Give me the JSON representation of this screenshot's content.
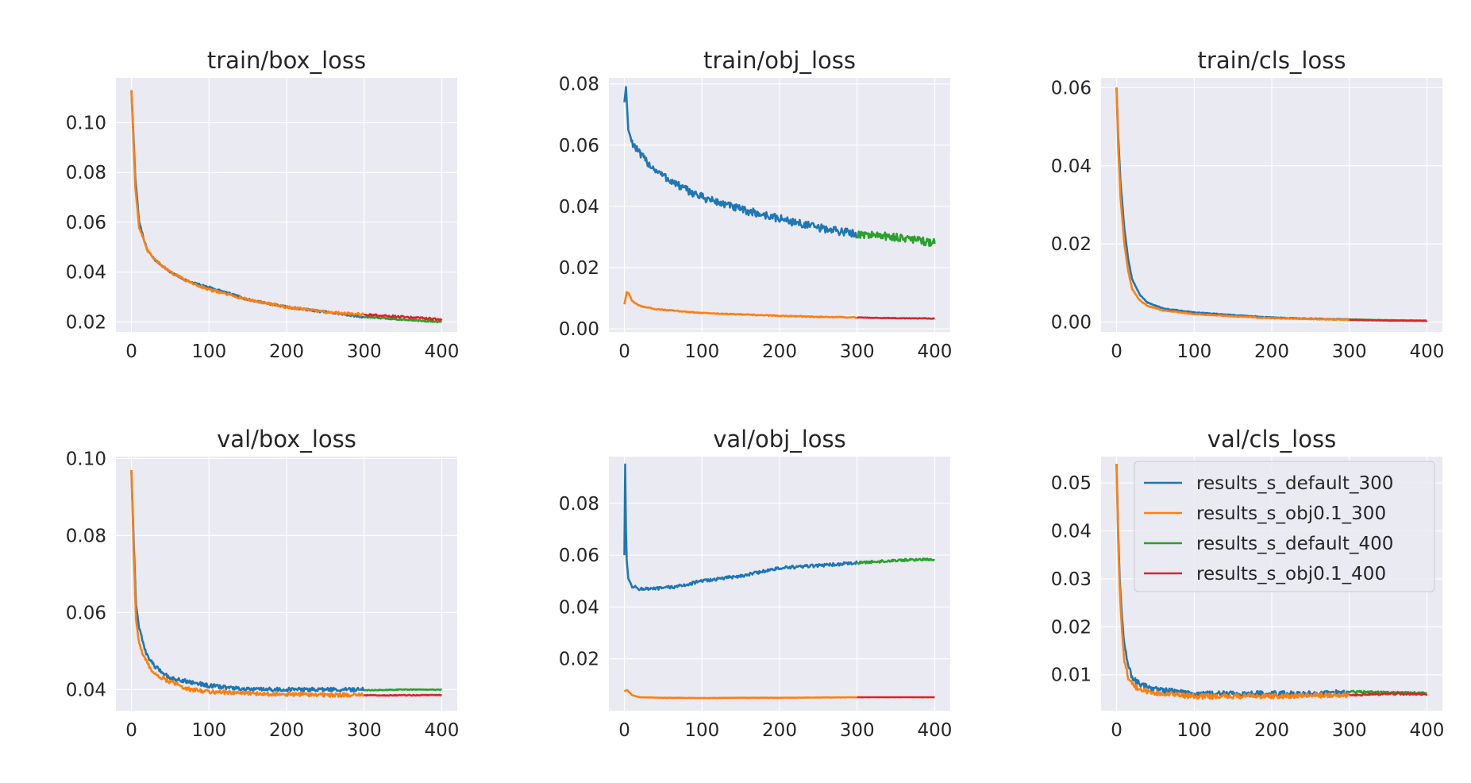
{
  "figure_title": "",
  "colors": {
    "results_s_default_300": "#1f77b4",
    "results_s_obj0.1_300": "#ff7f0e",
    "results_s_default_400": "#2ca02c",
    "results_s_obj0.1_400": "#d62728",
    "panel_bg": "#eaeaf2",
    "grid": "#ffffff"
  },
  "legend": {
    "placement": "upper right of val/cls_loss",
    "entries": [
      {
        "key": "results_s_default_300",
        "label": "results_s_default_300"
      },
      {
        "key": "results_s_obj0.1_300",
        "label": "results_s_obj0.1_300"
      },
      {
        "key": "results_s_default_400",
        "label": "results_s_default_400"
      },
      {
        "key": "results_s_obj0.1_400",
        "label": "results_s_obj0.1_400"
      }
    ]
  },
  "chart_data": [
    {
      "type": "line",
      "title": "train/box_loss",
      "xlim": [
        -20,
        420
      ],
      "ylim": [
        0.016,
        0.118
      ],
      "xticks": [
        0,
        100,
        200,
        300,
        400
      ],
      "xtick_labels": [
        "0",
        "100",
        "200",
        "300",
        "400"
      ],
      "yticks": [
        0.02,
        0.04,
        0.06,
        0.08,
        0.1
      ],
      "ytick_labels": [
        "0.02",
        "0.04",
        "0.06",
        "0.08",
        "0.10"
      ],
      "grid": true,
      "series": [
        {
          "name": "results_s_default_300",
          "x": [
            0,
            5,
            10,
            20,
            30,
            50,
            75,
            100,
            150,
            200,
            250,
            300
          ],
          "y": [
            0.113,
            0.078,
            0.06,
            0.049,
            0.045,
            0.04,
            0.036,
            0.034,
            0.029,
            0.026,
            0.024,
            0.022
          ],
          "noise": 0.0004
        },
        {
          "name": "results_s_obj0.1_300",
          "x": [
            0,
            5,
            10,
            20,
            30,
            50,
            75,
            100,
            150,
            200,
            250,
            300
          ],
          "y": [
            0.113,
            0.074,
            0.058,
            0.049,
            0.045,
            0.04,
            0.036,
            0.033,
            0.029,
            0.026,
            0.024,
            0.023
          ],
          "noise": 0.0005
        },
        {
          "name": "results_s_default_400",
          "x": [
            300,
            350,
            400
          ],
          "y": [
            0.022,
            0.021,
            0.02
          ],
          "noise": 0.0003
        },
        {
          "name": "results_s_obj0.1_400",
          "x": [
            300,
            350,
            400
          ],
          "y": [
            0.023,
            0.022,
            0.021
          ],
          "noise": 0.0004
        }
      ]
    },
    {
      "type": "line",
      "title": "train/obj_loss",
      "xlim": [
        -20,
        420
      ],
      "ylim": [
        -0.001,
        0.082
      ],
      "xticks": [
        0,
        100,
        200,
        300,
        400
      ],
      "xtick_labels": [
        "0",
        "100",
        "200",
        "300",
        "400"
      ],
      "yticks": [
        0.0,
        0.02,
        0.04,
        0.06,
        0.08
      ],
      "ytick_labels": [
        "0.00",
        "0.02",
        "0.04",
        "0.06",
        "0.08"
      ],
      "grid": true,
      "series": [
        {
          "name": "results_s_default_300",
          "x": [
            0,
            2,
            5,
            10,
            20,
            35,
            50,
            75,
            100,
            150,
            200,
            250,
            300
          ],
          "y": [
            0.074,
            0.079,
            0.065,
            0.061,
            0.057,
            0.053,
            0.05,
            0.046,
            0.043,
            0.039,
            0.036,
            0.033,
            0.031
          ],
          "noise": 0.0013
        },
        {
          "name": "results_s_obj0.1_300",
          "x": [
            0,
            3,
            6,
            10,
            20,
            40,
            70,
            100,
            150,
            200,
            250,
            300
          ],
          "y": [
            0.008,
            0.012,
            0.0115,
            0.009,
            0.0075,
            0.0065,
            0.0058,
            0.0052,
            0.0047,
            0.0043,
            0.0039,
            0.0037
          ],
          "noise": 0.00015
        },
        {
          "name": "results_s_default_400",
          "x": [
            300,
            350,
            400
          ],
          "y": [
            0.031,
            0.03,
            0.028
          ],
          "noise": 0.0013
        },
        {
          "name": "results_s_obj0.1_400",
          "x": [
            300,
            350,
            400
          ],
          "y": [
            0.0037,
            0.0035,
            0.0034
          ],
          "noise": 0.0001
        }
      ]
    },
    {
      "type": "line",
      "title": "train/cls_loss",
      "xlim": [
        -20,
        420
      ],
      "ylim": [
        -0.0025,
        0.0625
      ],
      "xticks": [
        0,
        100,
        200,
        300,
        400
      ],
      "xtick_labels": [
        "0",
        "100",
        "200",
        "300",
        "400"
      ],
      "yticks": [
        0.0,
        0.02,
        0.04,
        0.06
      ],
      "ytick_labels": [
        "0.00",
        "0.02",
        "0.04",
        "0.06"
      ],
      "grid": true,
      "series": [
        {
          "name": "results_s_default_300",
          "x": [
            0,
            2,
            5,
            10,
            15,
            20,
            30,
            40,
            60,
            100,
            150,
            200,
            250,
            300
          ],
          "y": [
            0.06,
            0.048,
            0.036,
            0.024,
            0.016,
            0.011,
            0.007,
            0.005,
            0.0035,
            0.0025,
            0.0018,
            0.0012,
            0.0009,
            0.0007
          ],
          "noise": 0.0001
        },
        {
          "name": "results_s_obj0.1_300",
          "x": [
            0,
            2,
            5,
            10,
            15,
            20,
            30,
            40,
            60,
            100,
            150,
            200,
            250,
            300
          ],
          "y": [
            0.06,
            0.045,
            0.032,
            0.02,
            0.013,
            0.0085,
            0.0055,
            0.0042,
            0.003,
            0.0021,
            0.0015,
            0.001,
            0.0008,
            0.0006
          ],
          "noise": 0.0001
        },
        {
          "name": "results_s_default_400",
          "x": [
            300,
            350,
            400
          ],
          "y": [
            0.0007,
            0.0005,
            0.0004
          ],
          "noise": 5e-05
        },
        {
          "name": "results_s_obj0.1_400",
          "x": [
            300,
            350,
            400
          ],
          "y": [
            0.0006,
            0.0004,
            0.0003
          ],
          "noise": 5e-05
        }
      ]
    },
    {
      "type": "line",
      "title": "val/box_loss",
      "xlim": [
        -20,
        420
      ],
      "ylim": [
        0.0345,
        0.1005
      ],
      "xticks": [
        0,
        100,
        200,
        300,
        400
      ],
      "xtick_labels": [
        "0",
        "100",
        "200",
        "300",
        "400"
      ],
      "yticks": [
        0.04,
        0.06,
        0.08,
        0.1
      ],
      "ytick_labels": [
        "0.04",
        "0.06",
        "0.08",
        "0.10"
      ],
      "grid": true,
      "series": [
        {
          "name": "results_s_default_300",
          "x": [
            0,
            3,
            6,
            10,
            15,
            20,
            30,
            50,
            75,
            100,
            150,
            200,
            250,
            300
          ],
          "y": [
            0.097,
            0.078,
            0.062,
            0.056,
            0.052,
            0.049,
            0.046,
            0.043,
            0.042,
            0.041,
            0.04,
            0.04,
            0.04,
            0.04
          ],
          "noise": 0.0005
        },
        {
          "name": "results_s_obj0.1_300",
          "x": [
            0,
            3,
            6,
            10,
            15,
            20,
            30,
            50,
            75,
            100,
            150,
            200,
            250,
            300
          ],
          "y": [
            0.097,
            0.075,
            0.058,
            0.052,
            0.049,
            0.047,
            0.044,
            0.042,
            0.04,
            0.0395,
            0.039,
            0.0388,
            0.0386,
            0.0385
          ],
          "noise": 0.0005
        },
        {
          "name": "results_s_default_400",
          "x": [
            300,
            350,
            400
          ],
          "y": [
            0.0398,
            0.04,
            0.04
          ],
          "noise": 0.0001
        },
        {
          "name": "results_s_obj0.1_400",
          "x": [
            300,
            350,
            400
          ],
          "y": [
            0.0385,
            0.0385,
            0.0386
          ],
          "noise": 0.0001
        }
      ]
    },
    {
      "type": "line",
      "title": "val/obj_loss",
      "xlim": [
        -20,
        420
      ],
      "ylim": [
        0.0,
        0.098
      ],
      "xticks": [
        0,
        100,
        200,
        300,
        400
      ],
      "xtick_labels": [
        "0",
        "100",
        "200",
        "300",
        "400"
      ],
      "yticks": [
        0.02,
        0.04,
        0.06,
        0.08
      ],
      "ytick_labels": [
        "0.02",
        "0.04",
        "0.06",
        "0.08"
      ],
      "grid": true,
      "series": [
        {
          "name": "results_s_default_300",
          "x": [
            0,
            1,
            2,
            3,
            5,
            10,
            20,
            40,
            70,
            100,
            150,
            200,
            250,
            300
          ],
          "y": [
            0.06,
            0.095,
            0.07,
            0.058,
            0.051,
            0.048,
            0.047,
            0.047,
            0.048,
            0.05,
            0.052,
            0.055,
            0.056,
            0.057
          ],
          "noise": 0.0006
        },
        {
          "name": "results_s_obj0.1_300",
          "x": [
            0,
            3,
            6,
            10,
            20,
            50,
            100,
            150,
            200,
            250,
            300
          ],
          "y": [
            0.0075,
            0.008,
            0.0072,
            0.006,
            0.0052,
            0.005,
            0.0049,
            0.005,
            0.005,
            0.0051,
            0.0052
          ],
          "noise": 5e-05
        },
        {
          "name": "results_s_default_400",
          "x": [
            300,
            350,
            400
          ],
          "y": [
            0.057,
            0.058,
            0.0585
          ],
          "noise": 0.0005
        },
        {
          "name": "results_s_obj0.1_400",
          "x": [
            300,
            350,
            400
          ],
          "y": [
            0.0052,
            0.0052,
            0.0052
          ],
          "noise": 2e-05
        }
      ]
    },
    {
      "type": "line",
      "title": "val/cls_loss",
      "xlim": [
        -20,
        420
      ],
      "ylim": [
        0.0025,
        0.0555
      ],
      "xticks": [
        0,
        100,
        200,
        300,
        400
      ],
      "xtick_labels": [
        "0",
        "100",
        "200",
        "300",
        "400"
      ],
      "yticks": [
        0.01,
        0.02,
        0.03,
        0.04,
        0.05
      ],
      "ytick_labels": [
        "0.01",
        "0.02",
        "0.03",
        "0.04",
        "0.05"
      ],
      "grid": true,
      "series": [
        {
          "name": "results_s_default_300",
          "x": [
            0,
            2,
            4,
            7,
            10,
            15,
            20,
            30,
            50,
            75,
            100,
            150,
            200,
            250,
            300
          ],
          "y": [
            0.054,
            0.04,
            0.03,
            0.022,
            0.016,
            0.012,
            0.0095,
            0.008,
            0.007,
            0.0065,
            0.006,
            0.006,
            0.006,
            0.006,
            0.0063
          ],
          "noise": 0.0006
        },
        {
          "name": "results_s_obj0.1_300",
          "x": [
            0,
            2,
            4,
            7,
            10,
            15,
            20,
            30,
            50,
            75,
            100,
            150,
            200,
            250,
            300
          ],
          "y": [
            0.054,
            0.038,
            0.028,
            0.019,
            0.013,
            0.0095,
            0.008,
            0.0068,
            0.0062,
            0.0058,
            0.0055,
            0.0055,
            0.0055,
            0.0057,
            0.0058
          ],
          "noise": 0.0005
        },
        {
          "name": "results_s_default_400",
          "x": [
            300,
            350,
            400
          ],
          "y": [
            0.0065,
            0.0063,
            0.0062
          ],
          "noise": 0.0002
        },
        {
          "name": "results_s_obj0.1_400",
          "x": [
            300,
            350,
            400
          ],
          "y": [
            0.0058,
            0.006,
            0.006
          ],
          "noise": 0.0002
        }
      ]
    }
  ]
}
